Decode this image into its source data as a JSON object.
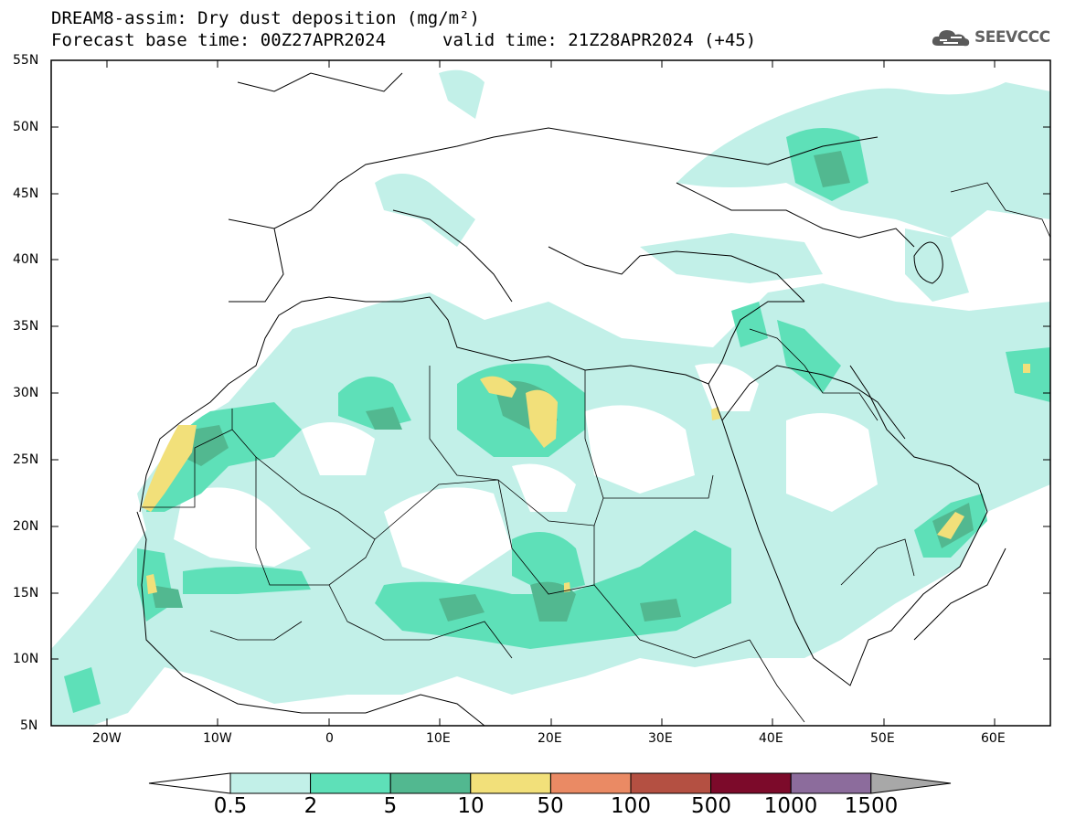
{
  "header": {
    "line1": "DREAM8-assim: Dry dust deposition (mg/m²)",
    "line2": "Forecast base time: 00Z27APR2024",
    "valid": "valid time: 21Z28APR2024 (+45)",
    "logo": "SEEVCCC"
  },
  "map": {
    "lat_labels": [
      "55N",
      "50N",
      "45N",
      "40N",
      "35N",
      "30N",
      "25N",
      "20N",
      "15N",
      "10N",
      "5N"
    ],
    "lon_labels": [
      "20W",
      "10W",
      "0",
      "10E",
      "20E",
      "30E",
      "40E",
      "50E",
      "60E"
    ],
    "lon_range": [
      -25,
      65
    ],
    "lat_range": [
      5,
      55
    ]
  },
  "colorbar": {
    "labels": [
      "0.5",
      "2",
      "5",
      "10",
      "50",
      "100",
      "500",
      "1000",
      "1500"
    ],
    "colors": [
      "#c2f0e8",
      "#5ee0b8",
      "#52b890",
      "#f2e07a",
      "#ea8a64",
      "#b45042",
      "#7c0a2a",
      "#8c6c9c"
    ],
    "under_color": "#ffffff",
    "over_color": "#a8a8a8"
  }
}
